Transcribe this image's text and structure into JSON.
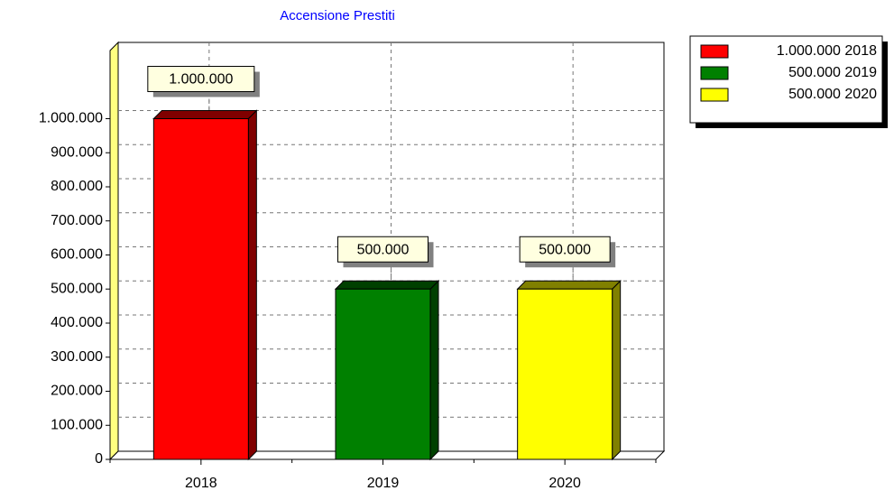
{
  "chart_data": {
    "type": "bar3d",
    "title": "Accensione Prestiti",
    "categories": [
      "2018",
      "2019",
      "2020"
    ],
    "values": [
      1000000,
      500000,
      500000
    ],
    "value_labels": [
      "1.000.000",
      "500.000",
      "500.000"
    ],
    "colors": [
      "#ff0000",
      "#008000",
      "#ffff00"
    ],
    "ylim": [
      0,
      1200000
    ],
    "yticks": [
      0,
      {
        "value": 100000,
        "label": "100.000"
      },
      {
        "value": 200000,
        "label": "200.000"
      },
      {
        "value": 300000,
        "label": "300.000"
      },
      {
        "value": 400000,
        "label": "400.000"
      },
      {
        "value": 500000,
        "label": "500.000"
      },
      {
        "value": 600000,
        "label": "600.000"
      },
      {
        "value": 700000,
        "label": "700.000"
      },
      {
        "value": 800000,
        "label": "800.000"
      },
      {
        "value": 900000,
        "label": "900.000"
      },
      {
        "value": 1000000,
        "label": "1.000.000"
      }
    ],
    "grid": true,
    "legend": "right"
  }
}
